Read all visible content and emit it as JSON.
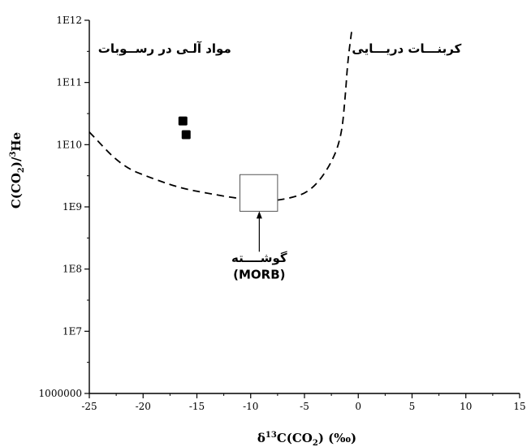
{
  "chart_data": {
    "type": "scatter",
    "xlabel": {
      "prefix": "δ",
      "sup": "13",
      "mid": "C(CO",
      "sub": "2",
      "suffix": ") (‰)"
    },
    "ylabel": {
      "prefix": "C(CO",
      "sub": "2",
      "mid": ")/",
      "sup": "3",
      "suffix": "He"
    },
    "xlim": [
      -25,
      15
    ],
    "y_scale": "log",
    "ylim": [
      1000000,
      1000000000000
    ],
    "x_ticks": [
      -25,
      -20,
      -15,
      -10,
      -5,
      0,
      5,
      10,
      15
    ],
    "x_tick_labels": [
      "-25",
      "-20",
      "-15",
      "-10",
      "-5",
      "0",
      "5",
      "10",
      "15"
    ],
    "y_ticks": [
      1000000,
      10000000,
      100000000,
      1000000000,
      10000000000,
      100000000000,
      1000000000000
    ],
    "y_tick_labels": [
      "1000000",
      "1E7",
      "1E8",
      "1E9",
      "1E10",
      "1E11",
      "1E12"
    ],
    "grid": false,
    "series": [
      {
        "marker": "square",
        "color": "#000000",
        "points": [
          {
            "x": -16.3,
            "y": 24000000000
          },
          {
            "x": -16.0,
            "y": 14500000000
          }
        ]
      }
    ],
    "boundary_curve": {
      "style": "dashed",
      "color": "#000000",
      "points": [
        {
          "x": -25,
          "y": 16000000000
        },
        {
          "x": -22,
          "y": 4500000000
        },
        {
          "x": -19,
          "y": 2800000000
        },
        {
          "x": -16.5,
          "y": 2000000000
        },
        {
          "x": -14,
          "y": 1650000000
        },
        {
          "x": -11,
          "y": 1350000000
        },
        {
          "x": -8.5,
          "y": 1230000000
        },
        {
          "x": -6.5,
          "y": 1350000000
        },
        {
          "x": -4.5,
          "y": 1750000000
        },
        {
          "x": -2.8,
          "y": 4000000000
        },
        {
          "x": -1.6,
          "y": 12000000000
        },
        {
          "x": -1.2,
          "y": 60000000000
        },
        {
          "x": -1.0,
          "y": 200000000000
        },
        {
          "x": -0.6,
          "y": 700000000000
        }
      ]
    },
    "morb_box": {
      "x": [
        -11,
        -7.5
      ],
      "y": [
        850000000,
        3300000000
      ]
    },
    "morb_arrow": {
      "from": {
        "x": -9.2,
        "y": 190000000
      },
      "to": {
        "x": -9.2,
        "y": 850000000
      }
    },
    "annotations": [
      {
        "text": "مواد آلـی در رســوبات",
        "x": -18,
        "y": 300000000000
      },
      {
        "text": "کربنـــات دریـــایی",
        "x": 4.5,
        "y": 300000000000
      },
      {
        "text": "گوشــــته",
        "x": -9.2,
        "y": 130000000
      },
      {
        "text": "(MORB)",
        "x": -9.2,
        "y": 70000000
      }
    ]
  }
}
